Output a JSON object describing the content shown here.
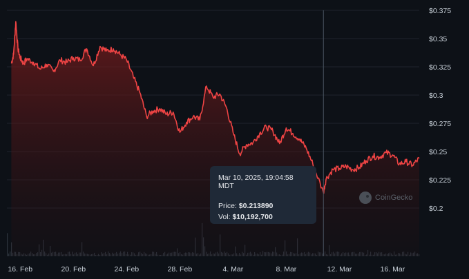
{
  "chart_data": {
    "type": "area",
    "x_ticks": [
      "16. Feb",
      "20. Feb",
      "24. Feb",
      "28. Feb",
      "4. Mar",
      "8. Mar",
      "12. Mar",
      "16. Mar"
    ],
    "y_ticks": [
      "$0.375",
      "$0.35",
      "$0.325",
      "$0.3",
      "$0.275",
      "$0.25",
      "$0.225",
      "$0.2"
    ],
    "ylim": [
      0.2,
      0.375
    ],
    "xlim": [
      "2025-02-15",
      "2025-03-18"
    ],
    "grid": "horizontal",
    "series": [
      {
        "values": [
          {
            "x": "2025-02-15 08:00",
            "y": 0.328
          },
          {
            "x": "2025-02-15 12:00",
            "y": 0.336
          },
          {
            "x": "2025-02-15 16:00",
            "y": 0.365
          },
          {
            "x": "2025-02-15 20:00",
            "y": 0.341
          },
          {
            "x": "2025-02-16 00:00",
            "y": 0.333
          },
          {
            "x": "2025-02-16 06:00",
            "y": 0.328
          },
          {
            "x": "2025-02-16 12:00",
            "y": 0.332
          },
          {
            "x": "2025-02-17 00:00",
            "y": 0.329
          },
          {
            "x": "2025-02-17 12:00",
            "y": 0.323
          },
          {
            "x": "2025-02-18 00:00",
            "y": 0.327
          },
          {
            "x": "2025-02-18 12:00",
            "y": 0.321
          },
          {
            "x": "2025-02-19 00:00",
            "y": 0.331
          },
          {
            "x": "2025-02-19 12:00",
            "y": 0.329
          },
          {
            "x": "2025-02-20 00:00",
            "y": 0.333
          },
          {
            "x": "2025-02-20 12:00",
            "y": 0.331
          },
          {
            "x": "2025-02-21 00:00",
            "y": 0.341
          },
          {
            "x": "2025-02-21 12:00",
            "y": 0.326
          },
          {
            "x": "2025-02-22 00:00",
            "y": 0.343
          },
          {
            "x": "2025-02-22 12:00",
            "y": 0.339
          },
          {
            "x": "2025-02-23 00:00",
            "y": 0.341
          },
          {
            "x": "2025-02-23 12:00",
            "y": 0.336
          },
          {
            "x": "2025-02-24 00:00",
            "y": 0.331
          },
          {
            "x": "2025-02-24 12:00",
            "y": 0.316
          },
          {
            "x": "2025-02-25 00:00",
            "y": 0.302
          },
          {
            "x": "2025-02-25 12:00",
            "y": 0.281
          },
          {
            "x": "2025-02-26 00:00",
            "y": 0.286
          },
          {
            "x": "2025-02-26 12:00",
            "y": 0.288
          },
          {
            "x": "2025-02-27 00:00",
            "y": 0.283
          },
          {
            "x": "2025-02-27 12:00",
            "y": 0.285
          },
          {
            "x": "2025-02-28 00:00",
            "y": 0.267
          },
          {
            "x": "2025-02-28 12:00",
            "y": 0.276
          },
          {
            "x": "2025-03-01 00:00",
            "y": 0.281
          },
          {
            "x": "2025-03-01 12:00",
            "y": 0.278
          },
          {
            "x": "2025-03-02 00:00",
            "y": 0.308
          },
          {
            "x": "2025-03-02 12:00",
            "y": 0.298
          },
          {
            "x": "2025-03-03 00:00",
            "y": 0.301
          },
          {
            "x": "2025-03-03 12:00",
            "y": 0.289
          },
          {
            "x": "2025-03-04 00:00",
            "y": 0.267
          },
          {
            "x": "2025-03-04 12:00",
            "y": 0.248
          },
          {
            "x": "2025-03-05 00:00",
            "y": 0.256
          },
          {
            "x": "2025-03-05 12:00",
            "y": 0.258
          },
          {
            "x": "2025-03-06 00:00",
            "y": 0.266
          },
          {
            "x": "2025-03-06 12:00",
            "y": 0.272
          },
          {
            "x": "2025-03-07 00:00",
            "y": 0.268
          },
          {
            "x": "2025-03-07 12:00",
            "y": 0.257
          },
          {
            "x": "2025-03-08 00:00",
            "y": 0.271
          },
          {
            "x": "2025-03-08 12:00",
            "y": 0.266
          },
          {
            "x": "2025-03-09 00:00",
            "y": 0.261
          },
          {
            "x": "2025-03-09 12:00",
            "y": 0.253
          },
          {
            "x": "2025-03-10 00:00",
            "y": 0.239
          },
          {
            "x": "2025-03-10 19:04",
            "y": 0.21389
          },
          {
            "x": "2025-03-11 00:00",
            "y": 0.226
          },
          {
            "x": "2025-03-11 12:00",
            "y": 0.234
          },
          {
            "x": "2025-03-12 00:00",
            "y": 0.235
          },
          {
            "x": "2025-03-12 12:00",
            "y": 0.237
          },
          {
            "x": "2025-03-13 00:00",
            "y": 0.234
          },
          {
            "x": "2025-03-13 12:00",
            "y": 0.236
          },
          {
            "x": "2025-03-14 00:00",
            "y": 0.242
          },
          {
            "x": "2025-03-14 12:00",
            "y": 0.246
          },
          {
            "x": "2025-03-15 00:00",
            "y": 0.245
          },
          {
            "x": "2025-03-15 12:00",
            "y": 0.249
          },
          {
            "x": "2025-03-16 00:00",
            "y": 0.247
          },
          {
            "x": "2025-03-16 12:00",
            "y": 0.239
          },
          {
            "x": "2025-03-17 00:00",
            "y": 0.241
          },
          {
            "x": "2025-03-17 12:00",
            "y": 0.238
          },
          {
            "x": "2025-03-18 00:00",
            "y": 0.244
          }
        ]
      }
    ],
    "volume_bars": true
  },
  "tooltip": {
    "date": "Mar 10, 2025, 19:04:58 MDT",
    "price_label": "Price:",
    "price_value": "$0.213890",
    "vol_label": "Vol:",
    "vol_value": "$10,192,700"
  },
  "watermark": {
    "text": "CoinGecko",
    "icon": "coingecko-logo-icon"
  },
  "colors": {
    "line": "#ef4444",
    "background": "#0d1117",
    "grid": "#1e242c",
    "crosshair": "#4b5563"
  }
}
